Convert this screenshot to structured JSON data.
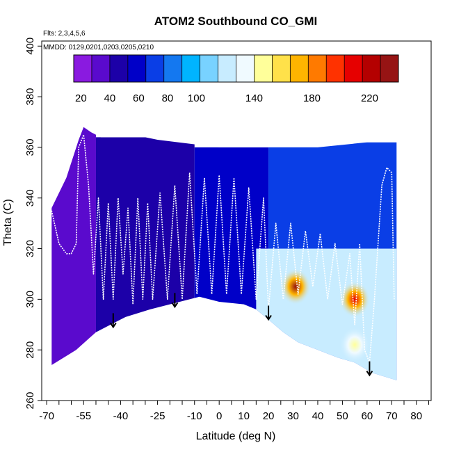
{
  "chart_data": {
    "type": "heatmap",
    "title": "ATOM2 Southbound CO_GMI",
    "flights_note": "Flts: 2,3,4,5,6",
    "date_note": "MMDD: 0129,0201,0203,0205,0210",
    "xlabel": "Latitude (deg N)",
    "ylabel": "Theta (C)",
    "xlim": [
      -72,
      86
    ],
    "ylim": [
      260,
      402
    ],
    "x_ticks_minor": [
      -70,
      -65,
      -60,
      -55,
      -50,
      -45,
      -40,
      -35,
      -30,
      -25,
      -20,
      -15,
      -10,
      -5,
      0,
      5,
      10,
      15,
      20,
      25,
      30,
      35,
      40,
      45,
      50,
      55,
      60,
      65,
      70,
      75,
      80,
      85
    ],
    "x_tick_labels": [
      "-70",
      "-55",
      "-40",
      "-25",
      "-10",
      "0",
      "10",
      "20",
      "30",
      "40",
      "50",
      "60",
      "70",
      "80"
    ],
    "y_ticks": [
      260,
      280,
      300,
      320,
      340,
      360,
      380,
      400
    ],
    "y_tick_labels": [
      "260",
      "280",
      "300",
      "320",
      "340",
      "360",
      "380",
      "400"
    ],
    "grid": false,
    "colorbar": {
      "position": "top",
      "range": [
        15,
        240
      ],
      "tick_labels": [
        "20",
        "40",
        "60",
        "80",
        "100",
        "140",
        "180",
        "220"
      ],
      "tick_values": [
        20,
        40,
        60,
        80,
        100,
        140,
        180,
        220
      ],
      "palette": [
        "#8a1ae0",
        "#5a0acd",
        "#1c00a8",
        "#0000c8",
        "#0a3ee6",
        "#1478f0",
        "#00b4ff",
        "#78d2ff",
        "#c8ecff",
        "#f0faff",
        "#ffff9a",
        "#ffe14a",
        "#ffb400",
        "#ff7a00",
        "#ff3200",
        "#e60000",
        "#b40000",
        "#961414"
      ]
    },
    "field_outline": {
      "bottom_boundary": [
        [
          -68,
          274
        ],
        [
          -58,
          280
        ],
        [
          -50,
          287
        ],
        [
          -44,
          290
        ],
        [
          -38,
          293
        ],
        [
          -28,
          296
        ],
        [
          -20,
          298
        ],
        [
          -12,
          300
        ],
        [
          -8,
          301
        ],
        [
          0,
          299
        ],
        [
          10,
          298
        ],
        [
          15,
          296
        ],
        [
          20,
          292
        ],
        [
          26,
          287
        ],
        [
          32,
          283
        ],
        [
          40,
          280
        ],
        [
          48,
          277
        ],
        [
          55,
          275
        ],
        [
          62,
          271
        ],
        [
          72,
          268
        ]
      ],
      "top_boundary": [
        [
          -68,
          336
        ],
        [
          -62,
          348
        ],
        [
          -57,
          363
        ],
        [
          -55,
          368
        ],
        [
          -52,
          366
        ],
        [
          -48,
          364
        ],
        [
          -30,
          364
        ],
        [
          -25,
          363
        ],
        [
          0,
          360
        ],
        [
          20,
          360
        ],
        [
          40,
          360
        ],
        [
          60,
          362
        ],
        [
          72,
          362
        ]
      ]
    },
    "value_regions": [
      {
        "lat_range": [
          -68,
          -50
        ],
        "theta_range": [
          274,
          368
        ],
        "co_ppb": 35
      },
      {
        "lat_range": [
          -50,
          -10
        ],
        "theta_range": [
          287,
          364
        ],
        "co_ppb": 50
      },
      {
        "lat_range": [
          -10,
          20
        ],
        "theta_range": [
          292,
          360
        ],
        "co_ppb": 58
      },
      {
        "lat_range": [
          20,
          72
        ],
        "theta_range": [
          268,
          362
        ],
        "co_ppb": 75
      },
      {
        "lat_range": [
          15,
          72
        ],
        "theta_range": [
          268,
          320
        ],
        "co_ppb": 120
      }
    ],
    "hotspots": [
      {
        "lat": 31,
        "theta": 305,
        "peak_co_ppb": 230
      },
      {
        "lat": 55,
        "theta": 300,
        "peak_co_ppb": 210
      },
      {
        "lat": 55,
        "theta": 282,
        "peak_co_ppb": 150
      }
    ],
    "flight_track": [
      [
        -68,
        335
      ],
      [
        -65,
        322
      ],
      [
        -62,
        318
      ],
      [
        -60,
        318
      ],
      [
        -58,
        322
      ],
      [
        -57,
        360
      ],
      [
        -55,
        365
      ],
      [
        -53,
        345
      ],
      [
        -51,
        310
      ],
      [
        -49,
        340
      ],
      [
        -47,
        300
      ],
      [
        -45,
        338
      ],
      [
        -43,
        300
      ],
      [
        -41,
        340
      ],
      [
        -39,
        310
      ],
      [
        -37,
        336
      ],
      [
        -35,
        298
      ],
      [
        -33,
        340
      ],
      [
        -31,
        300
      ],
      [
        -29,
        338
      ],
      [
        -27,
        300
      ],
      [
        -24,
        342
      ],
      [
        -21,
        300
      ],
      [
        -18,
        345
      ],
      [
        -15,
        300
      ],
      [
        -12,
        350
      ],
      [
        -9,
        302
      ],
      [
        -6,
        348
      ],
      [
        -3,
        302
      ],
      [
        0,
        349
      ],
      [
        3,
        302
      ],
      [
        6,
        348
      ],
      [
        9,
        302
      ],
      [
        12,
        344
      ],
      [
        15,
        300
      ],
      [
        18,
        340
      ],
      [
        20,
        296
      ],
      [
        23,
        330
      ],
      [
        26,
        300
      ],
      [
        29,
        330
      ],
      [
        32,
        302
      ],
      [
        35,
        327
      ],
      [
        38,
        305
      ],
      [
        41,
        326
      ],
      [
        44,
        300
      ],
      [
        47,
        322
      ],
      [
        50,
        298
      ],
      [
        53,
        318
      ],
      [
        55,
        290
      ],
      [
        57,
        322
      ],
      [
        59,
        280
      ],
      [
        61,
        275
      ],
      [
        63,
        300
      ],
      [
        66,
        345
      ],
      [
        68,
        352
      ],
      [
        70,
        350
      ],
      [
        71,
        300
      ]
    ],
    "arrows": [
      {
        "lat": -43,
        "theta": 289
      },
      {
        "lat": -18,
        "theta": 297
      },
      {
        "lat": 20,
        "theta": 292
      },
      {
        "lat": 61,
        "theta": 270
      }
    ]
  }
}
